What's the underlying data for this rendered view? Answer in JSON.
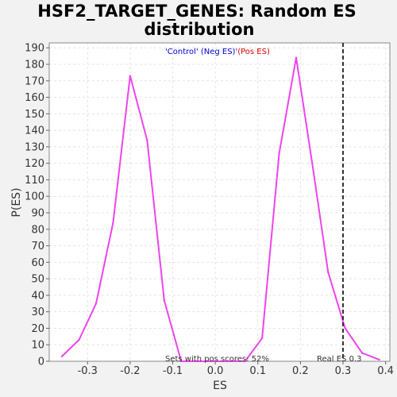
{
  "chart_data": {
    "type": "line",
    "title_lines": [
      "HSF2_TARGET_GENES: Random ES",
      "distribution"
    ],
    "xlabel": "ES",
    "ylabel": "P(ES)",
    "xlim": [
      -0.39,
      0.41
    ],
    "ylim": [
      0,
      193
    ],
    "x_ticks": [
      -0.3,
      -0.2,
      -0.1,
      0.0,
      0.1,
      0.2,
      0.3,
      0.4
    ],
    "x_tick_labels": [
      "-0.3",
      "-0.2",
      "-0.1",
      "0.0",
      "0.1",
      "0.2",
      "0.3",
      "0.4"
    ],
    "y_ticks": [
      0,
      10,
      20,
      30,
      40,
      50,
      60,
      70,
      80,
      90,
      100,
      110,
      120,
      130,
      140,
      150,
      160,
      170,
      180,
      190
    ],
    "y_tick_labels": [
      "0",
      "10",
      "20",
      "30",
      "40",
      "50",
      "60",
      "70",
      "80",
      "90",
      "100",
      "110",
      "120",
      "130",
      "140",
      "150",
      "160",
      "170",
      "180",
      "190"
    ],
    "grid": true,
    "legend": {
      "position": "top-center",
      "neg_label": "'Control' (Neg ES)'",
      "pos_label": " (Pos ES)",
      "neg_color": "#0000cc",
      "pos_color": "#dd0000"
    },
    "series": [
      {
        "color": "#ee44ee",
        "x": [
          -0.36,
          -0.32,
          -0.28,
          -0.24,
          -0.2,
          -0.16,
          -0.12,
          -0.08,
          -0.04,
          0.0,
          0.04,
          0.07,
          0.11,
          0.15,
          0.19,
          0.23,
          0.265,
          0.305,
          0.345,
          0.385
        ],
        "y": [
          3,
          13,
          35,
          84,
          173,
          134,
          37,
          0,
          0,
          0,
          0,
          0,
          14,
          126,
          184,
          116,
          54,
          20,
          5,
          1
        ]
      }
    ],
    "annotations": {
      "pos_scores_text": "Sets with pos scores: 52%",
      "real_es_text": "Real ES 0.3",
      "real_es_value": 0.3
    }
  }
}
